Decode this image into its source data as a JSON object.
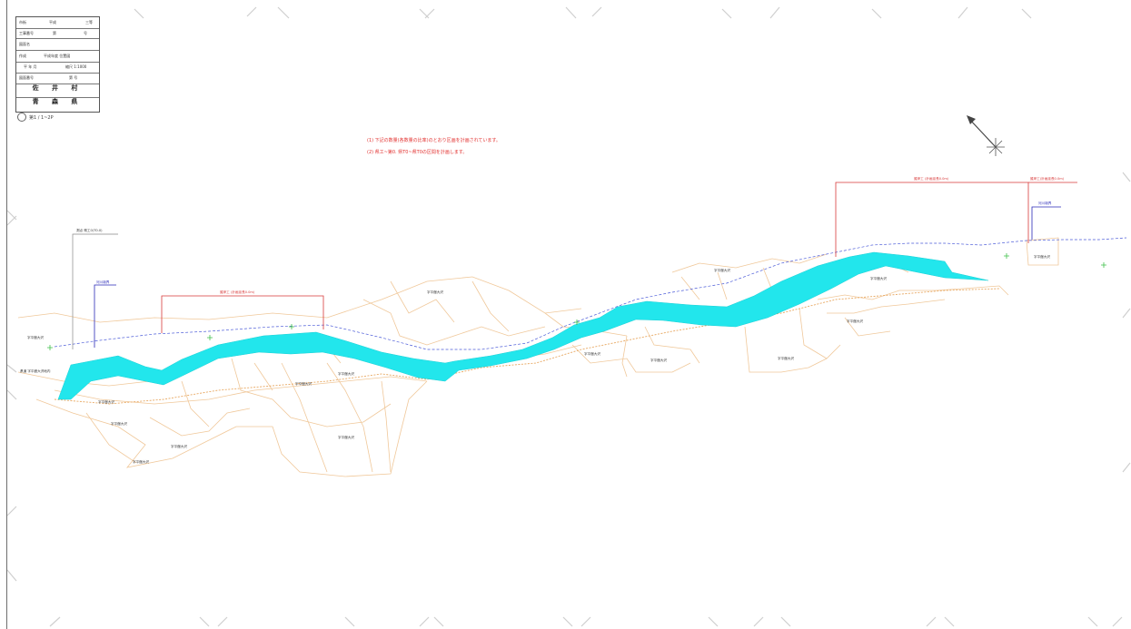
{
  "colors": {
    "river": "#22e6ec",
    "parcel_lines": "#f0c89a",
    "annotation_red": "#e2312f",
    "annotation_blue": "#2a2ab8",
    "green_marks": "#3fc04a",
    "frame_marks": "#c8c8c8"
  },
  "icons": {
    "north_arrow": "north-arrow-icon",
    "compass": "compass-rose-icon"
  },
  "title_block": {
    "rows": [
      {
        "left": "市街",
        "mid": "平成",
        "right": "三等"
      },
      {
        "left": "工事番号",
        "mid": "第",
        "right": "号"
      },
      {
        "left": "図面名",
        "mid": "",
        "right": ""
      },
      {
        "left": "作成",
        "mid": "",
        "right": "平成年度 位置図"
      },
      {
        "left": "平 年 月",
        "mid": "",
        "right": "縮尺 1:1000"
      },
      {
        "left": "図面番号",
        "mid": "",
        "right": "第 号"
      }
    ],
    "town": "佐 井 村",
    "prefecture": "青 森 県",
    "sheet_number": "第1 / 1~2P"
  },
  "notes": [
    "(1) 下記の数量(各数量の比率)のとおり区画を計画されています。",
    "(2) 県工~第0. 県T0~県T0の区間を計画します。"
  ],
  "parcel_labels": [
    "字平舘大沢",
    "字平舘大沢",
    "字平舘大沢",
    "字平舘大沢",
    "字平舘大沢",
    "字平舘大沢",
    "字平舘大沢",
    "字平舘大沢",
    "字平舘大沢",
    "字平舘大沢",
    "字平舘大沢",
    "字平舘大沢",
    "字平舘大沢",
    "字平舘大沢",
    "字平舘大沢"
  ],
  "extent_labels": {
    "left_lead": "測点 県工0(T0.0)",
    "left_blue": "河川境界",
    "mid_red": "護岸工 (計画延長0.0m)",
    "right_red": "護岸工 (計画延長0.0m)",
    "right_red_end": "護岸工(計画延長0.0m)",
    "right_blue": "河川境界",
    "far_left": "字平舘大沢",
    "far_left_2": "県道 字平舘大沢地内"
  }
}
